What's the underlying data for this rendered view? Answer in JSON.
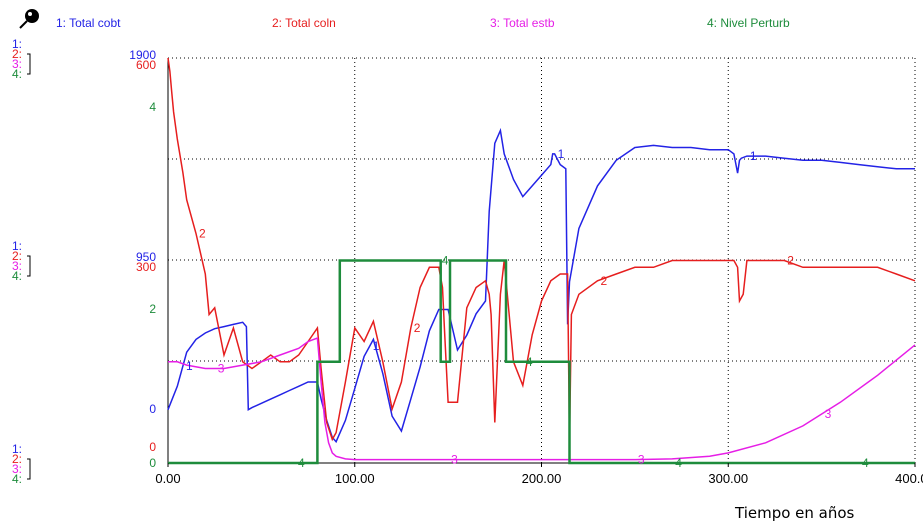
{
  "chart_data": {
    "type": "line",
    "legend": [
      {
        "num": "1:",
        "label": "1: Total cobt",
        "color": "#2323e6"
      },
      {
        "num": "2:",
        "label": "2: Total coln",
        "color": "#e61e1e"
      },
      {
        "num": "3:",
        "label": "3: Total estb",
        "color": "#e61ee6"
      },
      {
        "num": "4:",
        "label": "4: Nivel Perturb",
        "color": "#1e8c3c"
      }
    ],
    "xlabel": "Tiempo en años",
    "xlim": [
      0,
      400
    ],
    "x_ticks": [
      "0.00",
      "100.00",
      "200.00",
      "300.00",
      "400.00"
    ],
    "axis_labels": {
      "top": [
        "1900",
        "600",
        "",
        "4"
      ],
      "mid": [
        "950",
        "300",
        "",
        "2"
      ],
      "bottom": [
        "0",
        "0",
        "",
        "0"
      ]
    },
    "series": [
      {
        "name": "1: Total cobt",
        "scale": [
          0,
          1900
        ],
        "x": [
          0,
          5,
          10,
          15,
          20,
          25,
          30,
          35,
          40,
          42,
          43,
          45,
          50,
          55,
          60,
          65,
          70,
          75,
          80,
          82,
          85,
          88,
          90,
          95,
          100,
          105,
          110,
          115,
          120,
          125,
          130,
          135,
          140,
          145,
          150,
          155,
          160,
          165,
          170,
          172,
          175,
          178,
          180,
          185,
          190,
          195,
          200,
          205,
          206,
          207,
          210,
          213,
          214,
          215,
          220,
          230,
          240,
          250,
          260,
          270,
          280,
          290,
          300,
          303,
          305,
          306,
          307,
          310,
          320,
          330,
          340,
          350,
          360,
          370,
          380,
          390,
          400
        ],
        "y": [
          250,
          360,
          520,
          580,
          610,
          630,
          640,
          650,
          660,
          640,
          250,
          260,
          280,
          300,
          320,
          340,
          360,
          380,
          380,
          300,
          200,
          120,
          100,
          200,
          350,
          500,
          580,
          420,
          220,
          150,
          300,
          450,
          620,
          720,
          720,
          530,
          600,
          700,
          760,
          1180,
          1500,
          1560,
          1450,
          1330,
          1250,
          1300,
          1350,
          1400,
          1450,
          1450,
          1400,
          1380,
          650,
          850,
          1100,
          1300,
          1420,
          1480,
          1490,
          1480,
          1480,
          1470,
          1470,
          1450,
          1360,
          1420,
          1430,
          1440,
          1440,
          1430,
          1420,
          1420,
          1410,
          1400,
          1390,
          1380,
          1380
        ]
      },
      {
        "name": "2: Total coln",
        "scale": [
          0,
          600
        ],
        "x": [
          0,
          1,
          2,
          3,
          5,
          8,
          10,
          15,
          20,
          22,
          25,
          30,
          35,
          40,
          45,
          50,
          55,
          60,
          65,
          70,
          75,
          80,
          82,
          85,
          88,
          90,
          95,
          100,
          105,
          110,
          115,
          120,
          125,
          130,
          135,
          140,
          145,
          147,
          148,
          150,
          155,
          160,
          165,
          170,
          172,
          173,
          175,
          178,
          180,
          185,
          190,
          195,
          200,
          205,
          210,
          214,
          215,
          216,
          220,
          230,
          240,
          250,
          260,
          270,
          280,
          290,
          300,
          303,
          305,
          306,
          308,
          310,
          320,
          330,
          340,
          350,
          360,
          370,
          380,
          390,
          400
        ],
        "y": [
          600,
          580,
          550,
          520,
          480,
          430,
          390,
          340,
          280,
          220,
          230,
          160,
          200,
          150,
          140,
          150,
          160,
          150,
          150,
          160,
          180,
          200,
          140,
          60,
          35,
          45,
          120,
          200,
          180,
          210,
          150,
          80,
          120,
          200,
          260,
          290,
          290,
          260,
          200,
          90,
          90,
          230,
          260,
          270,
          250,
          220,
          60,
          250,
          300,
          150,
          115,
          190,
          240,
          270,
          280,
          280,
          30,
          220,
          250,
          270,
          280,
          290,
          290,
          300,
          300,
          300,
          300,
          300,
          290,
          240,
          250,
          300,
          300,
          300,
          290,
          290,
          290,
          290,
          290,
          280,
          270
        ]
      },
      {
        "name": "3: Total estb",
        "scale": [
          0,
          600
        ],
        "x": [
          0,
          5,
          10,
          20,
          30,
          40,
          50,
          60,
          70,
          75,
          80,
          82,
          84,
          86,
          88,
          90,
          95,
          100,
          150,
          200,
          250,
          270,
          290,
          300,
          320,
          340,
          360,
          380,
          400
        ],
        "y": [
          150,
          150,
          145,
          140,
          140,
          145,
          150,
          160,
          170,
          180,
          185,
          120,
          60,
          30,
          15,
          10,
          6,
          5,
          5,
          5,
          5,
          6,
          10,
          15,
          30,
          55,
          90,
          130,
          175
        ]
      },
      {
        "name": "4: Nivel Perturb",
        "scale": [
          0,
          4
        ],
        "x": [
          0,
          80,
          80,
          90,
          90,
          92,
          92,
          146,
          146,
          151,
          151,
          181,
          181,
          215,
          215,
          400
        ],
        "y": [
          0,
          0,
          1,
          1,
          1,
          1,
          2,
          2,
          1,
          1,
          2,
          2,
          1,
          1,
          0,
          0
        ]
      }
    ],
    "marker_labels": {
      "s1": "1",
      "s2": "2",
      "s3": "3",
      "s4": "4"
    }
  }
}
